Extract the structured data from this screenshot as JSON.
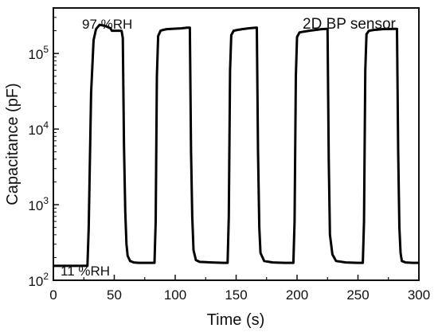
{
  "chart_data": {
    "type": "line",
    "xlabel": "Time (s)",
    "ylabel": "Capacitance (pF)",
    "x_ticks": [
      0,
      50,
      100,
      150,
      200,
      250,
      300
    ],
    "y_ticks": [
      {
        "value": 100,
        "base": "10",
        "exp": "2"
      },
      {
        "value": 1000,
        "base": "10",
        "exp": "3"
      },
      {
        "value": 10000,
        "base": "10",
        "exp": "4"
      },
      {
        "value": 100000,
        "base": "10",
        "exp": "5"
      }
    ],
    "xlim": [
      0,
      300
    ],
    "ylim": [
      100,
      400000
    ],
    "y_scale": "log",
    "grid": false,
    "annotations": {
      "top_left": "97 %RH",
      "bottom_left": "11 %RH",
      "top_right": "2D BP sensor"
    },
    "series": [
      {
        "x": [
          0,
          28,
          29,
          31,
          33,
          35,
          38,
          43,
          47,
          48,
          53,
          56,
          57,
          58,
          59,
          60,
          61,
          63,
          66,
          70,
          78,
          83,
          84,
          85,
          86,
          88,
          90,
          93,
          100,
          105,
          110,
          112,
          113,
          114,
          115,
          117,
          120,
          130,
          140,
          143,
          144,
          145,
          146,
          148,
          151,
          155,
          160,
          166,
          167,
          168,
          169,
          170,
          173,
          180,
          190,
          197,
          198,
          199,
          200,
          202,
          206,
          210,
          215,
          220,
          224,
          225,
          226,
          227,
          229,
          232,
          240,
          250,
          254,
          255,
          256,
          257,
          259,
          263,
          270,
          280,
          282,
          283,
          284,
          285,
          286,
          289,
          295,
          300
        ],
        "y": [
          155,
          155,
          500,
          30000,
          150000,
          210000,
          240000,
          230000,
          215000,
          200000,
          200000,
          200000,
          160000,
          6000,
          800,
          300,
          210,
          180,
          172,
          170,
          170,
          170,
          600,
          50000,
          170000,
          200000,
          205000,
          210000,
          213000,
          215000,
          220000,
          220000,
          5000,
          700,
          250,
          185,
          175,
          172,
          170,
          170,
          700,
          60000,
          175000,
          200000,
          205000,
          210000,
          215000,
          220000,
          220000,
          5000,
          500,
          230,
          180,
          172,
          170,
          170,
          600,
          50000,
          165000,
          190000,
          195000,
          200000,
          205000,
          210000,
          212000,
          212000,
          4000,
          400,
          220,
          180,
          172,
          170,
          170,
          600,
          60000,
          180000,
          200000,
          205000,
          210000,
          212000,
          212000,
          5000,
          500,
          230,
          180,
          172,
          170,
          170
        ]
      }
    ]
  }
}
